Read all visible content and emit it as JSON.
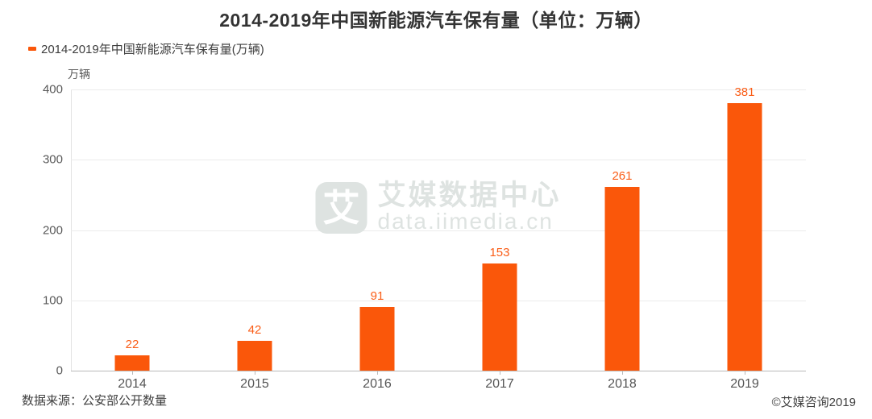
{
  "title": "2014-2019年中国新能源汽车保有量（单位：万辆）",
  "legend": {
    "label": "2014-2019年中国新能源汽车保有量(万辆)",
    "marker_color": "#fa570a"
  },
  "chart_data": {
    "type": "bar",
    "categories": [
      "2014",
      "2015",
      "2016",
      "2017",
      "2018",
      "2019"
    ],
    "values": [
      22,
      42,
      91,
      153,
      261,
      381
    ],
    "title": "2014-2019年中国新能源汽车保有量（单位：万辆）",
    "xlabel": "",
    "ylabel": "万辆",
    "ylim": [
      0,
      400
    ],
    "yticks": [
      0,
      100,
      200,
      300,
      400
    ],
    "grid": true,
    "legend_position": "top-left",
    "bar_color": "#fa570a",
    "value_label_color": "#fa5d17"
  },
  "watermark": {
    "logo_char": "艾",
    "line1": "艾媒数据中心",
    "line2": "data.iimedia.cn"
  },
  "footer": {
    "source": "数据来源：公安部公开数量",
    "copyright": "©艾媒咨询2019"
  }
}
